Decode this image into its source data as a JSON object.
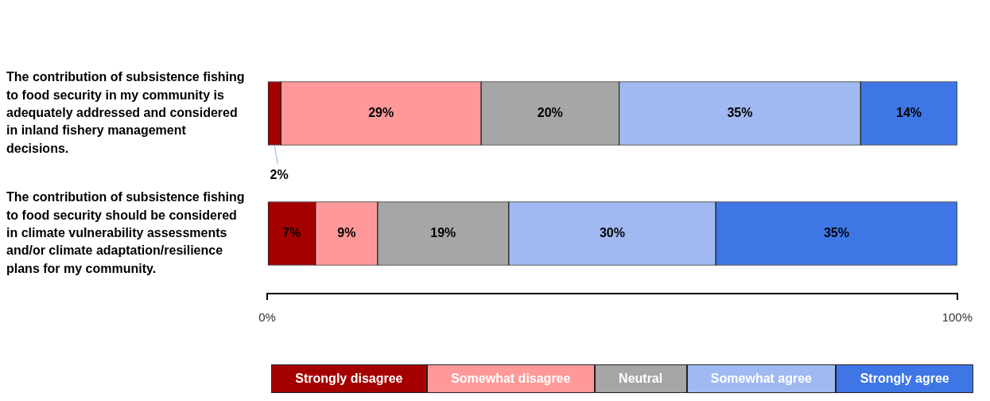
{
  "chart_data": {
    "type": "bar",
    "orientation": "horizontal",
    "stacked": true,
    "categories": [
      "The contribution of subsistence fishing to food security in my community is adequately addressed and considered in inland fishery management decisions.",
      "The contribution of subsistence fishing to food security should be considered in climate vulnerability assessments and/or climate adaptation/resilience plans for my community."
    ],
    "series": [
      {
        "name": "Strongly disagree",
        "color": "#a50000",
        "values": [
          2,
          7
        ],
        "value_labels": [
          "2%",
          "7%"
        ]
      },
      {
        "name": "Somewhat disagree",
        "color": "#ff9999",
        "values": [
          29,
          9
        ],
        "value_labels": [
          "29%",
          "9%"
        ]
      },
      {
        "name": "Neutral",
        "color": "#a6a6a6",
        "values": [
          20,
          19
        ],
        "value_labels": [
          "20%",
          "19%"
        ]
      },
      {
        "name": "Somewhat agree",
        "color": "#a0b9f2",
        "values": [
          35,
          30
        ],
        "value_labels": [
          "35%",
          "30%"
        ]
      },
      {
        "name": "Strongly agree",
        "color": "#3e76e6",
        "values": [
          14,
          35
        ],
        "value_labels": [
          "14%",
          "35%"
        ]
      }
    ],
    "xlim": [
      0,
      100
    ],
    "xticks": [
      {
        "value": 0,
        "label": "0%"
      },
      {
        "value": 100,
        "label": "100%"
      }
    ],
    "legend": "bottom"
  }
}
